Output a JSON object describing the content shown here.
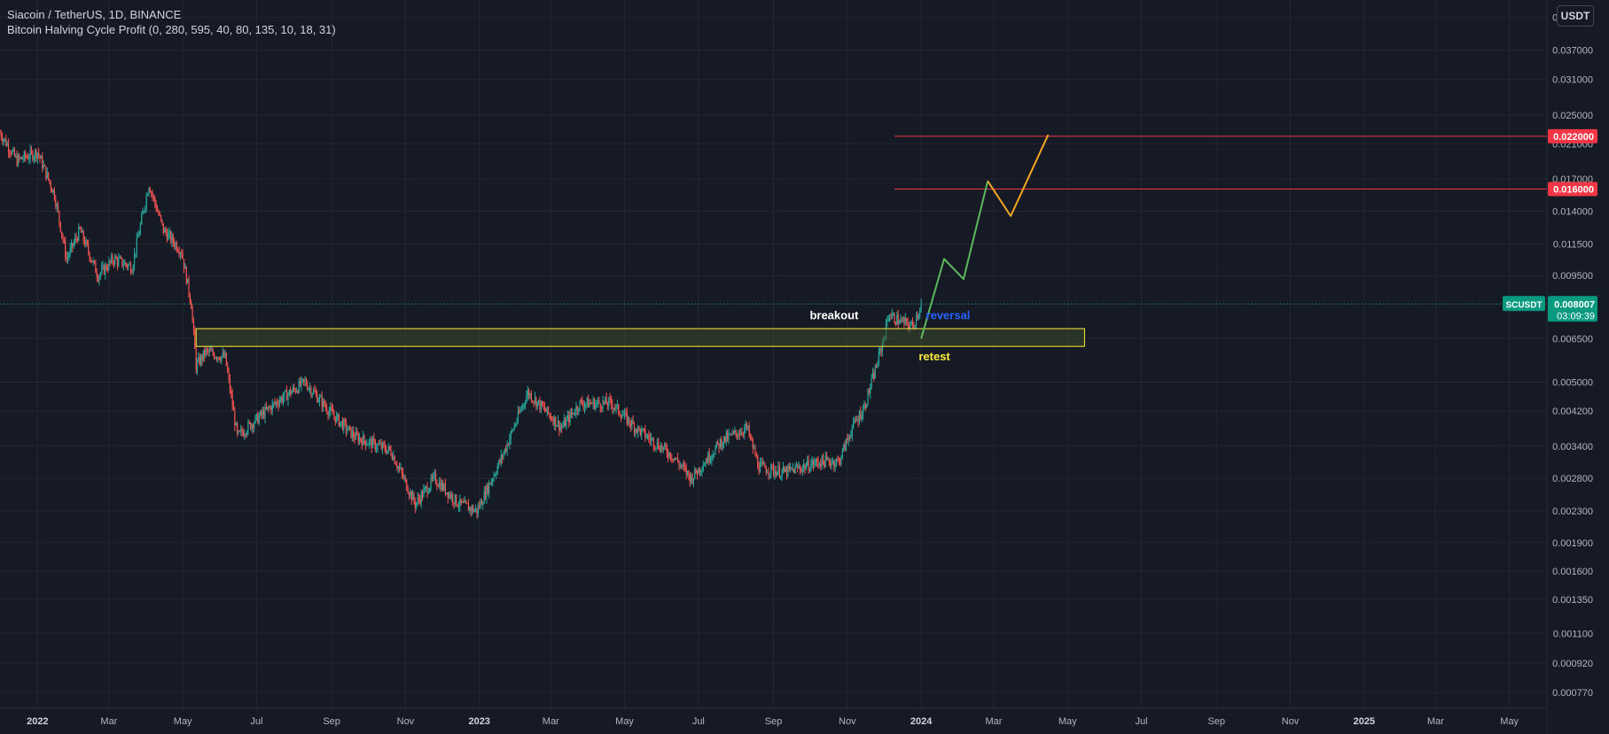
{
  "header": {
    "symbol_title": "Siacoin / TetherUS, 1D, BINANCE",
    "indicator": "Bitcoin Halving Cycle Profit (0, 280, 595, 40, 80, 135, 10, 18, 31)"
  },
  "currency_button": "USDT",
  "colors": {
    "background": "#161a25",
    "grid": "#232733",
    "text": "#b2b5be",
    "up": "#26a69a",
    "down": "#ef5350",
    "zone_border": "#ffeb3b",
    "zone_fill": "#3a4a2a",
    "target_line": "#f23645",
    "path_green": "#5cb85c",
    "path_orange": "#f5a623",
    "reversal_label": "#2962ff",
    "retest_label": "#ffeb3b",
    "current_price_bg": "#089981"
  },
  "chart_data": {
    "type": "candlestick",
    "title": "Siacoin / TetherUS, 1D, BINANCE",
    "scale": "log",
    "ylim": [
      0.0007,
      0.05
    ],
    "xlim": [
      "2021-12-01",
      "2025-06-01"
    ],
    "x_ticks": [
      {
        "label": "2022",
        "date": "2022-01-01",
        "bold": true
      },
      {
        "label": "Mar",
        "date": "2022-03-01"
      },
      {
        "label": "May",
        "date": "2022-05-01"
      },
      {
        "label": "Jul",
        "date": "2022-07-01"
      },
      {
        "label": "Sep",
        "date": "2022-09-01"
      },
      {
        "label": "Nov",
        "date": "2022-11-01"
      },
      {
        "label": "2023",
        "date": "2023-01-01",
        "bold": true
      },
      {
        "label": "Mar",
        "date": "2023-03-01"
      },
      {
        "label": "May",
        "date": "2023-05-01"
      },
      {
        "label": "Jul",
        "date": "2023-07-01"
      },
      {
        "label": "Sep",
        "date": "2023-09-01"
      },
      {
        "label": "Nov",
        "date": "2023-11-01"
      },
      {
        "label": "2024",
        "date": "2024-01-01",
        "bold": true
      },
      {
        "label": "Mar",
        "date": "2024-03-01"
      },
      {
        "label": "May",
        "date": "2024-05-01"
      },
      {
        "label": "Jul",
        "date": "2024-07-01"
      },
      {
        "label": "Sep",
        "date": "2024-09-01"
      },
      {
        "label": "Nov",
        "date": "2024-11-01"
      },
      {
        "label": "2025",
        "date": "2025-01-01",
        "bold": true
      },
      {
        "label": "Mar",
        "date": "2025-03-01"
      },
      {
        "label": "May",
        "date": "2025-05-01"
      }
    ],
    "y_ticks": [
      "0.045000",
      "0.037000",
      "0.031000",
      "0.025000",
      "0.021000",
      "0.017000",
      "0.014000",
      "0.011500",
      "0.009500",
      "0.008000",
      "0.006500",
      "0.005000",
      "0.004200",
      "0.003400",
      "0.002800",
      "0.002300",
      "0.001900",
      "0.001600",
      "0.001350",
      "0.001100",
      "0.000920",
      "0.000770"
    ],
    "price_path": [
      [
        "2021-12-01",
        0.0225
      ],
      [
        "2021-12-15",
        0.019
      ],
      [
        "2022-01-01",
        0.02
      ],
      [
        "2022-01-15",
        0.0155
      ],
      [
        "2022-01-25",
        0.0105
      ],
      [
        "2022-02-05",
        0.0125
      ],
      [
        "2022-02-20",
        0.0095
      ],
      [
        "2022-03-05",
        0.0105
      ],
      [
        "2022-03-20",
        0.01
      ],
      [
        "2022-04-03",
        0.0165
      ],
      [
        "2022-04-15",
        0.0125
      ],
      [
        "2022-04-30",
        0.011
      ],
      [
        "2022-05-08",
        0.008
      ],
      [
        "2022-05-12",
        0.0055
      ],
      [
        "2022-05-20",
        0.006
      ],
      [
        "2022-06-05",
        0.0058
      ],
      [
        "2022-06-15",
        0.0036
      ],
      [
        "2022-07-01",
        0.004
      ],
      [
        "2022-07-20",
        0.0045
      ],
      [
        "2022-08-10",
        0.005
      ],
      [
        "2022-08-30",
        0.0042
      ],
      [
        "2022-09-20",
        0.0036
      ],
      [
        "2022-10-20",
        0.0033
      ],
      [
        "2022-11-09",
        0.0024
      ],
      [
        "2022-11-25",
        0.0028
      ],
      [
        "2022-12-15",
        0.0024
      ],
      [
        "2022-12-30",
        0.0023
      ],
      [
        "2023-01-20",
        0.0032
      ],
      [
        "2023-02-10",
        0.0047
      ],
      [
        "2023-03-10",
        0.0038
      ],
      [
        "2023-03-25",
        0.0044
      ],
      [
        "2023-04-20",
        0.0044
      ],
      [
        "2023-05-10",
        0.0038
      ],
      [
        "2023-06-10",
        0.0032
      ],
      [
        "2023-06-25",
        0.0028
      ],
      [
        "2023-07-20",
        0.0035
      ],
      [
        "2023-08-10",
        0.0038
      ],
      [
        "2023-08-20",
        0.003
      ],
      [
        "2023-09-10",
        0.0029
      ],
      [
        "2023-09-25",
        0.003
      ],
      [
        "2023-10-10",
        0.0031
      ],
      [
        "2023-10-25",
        0.0031
      ],
      [
        "2023-11-05",
        0.0038
      ],
      [
        "2023-11-15",
        0.0043
      ],
      [
        "2023-11-25",
        0.0055
      ],
      [
        "2023-12-01",
        0.0065
      ],
      [
        "2023-12-05",
        0.0075
      ],
      [
        "2023-12-15",
        0.0072
      ],
      [
        "2023-12-25",
        0.007
      ],
      [
        "2024-01-01",
        0.008
      ]
    ],
    "current_price": {
      "label": "SCUSDT",
      "value": "0.008007",
      "countdown": "03:09:39"
    },
    "target_lines": [
      {
        "value": 0.022,
        "label": "0.022000",
        "from": "2023-12-10"
      },
      {
        "value": 0.016,
        "label": "0.016000",
        "from": "2023-12-10"
      }
    ],
    "zone": {
      "from": "2022-05-12",
      "to": "2024-05-15",
      "low": 0.0062,
      "high": 0.0069
    },
    "projection_green": [
      [
        "2024-01-01",
        0.0065
      ],
      [
        "2024-01-20",
        0.0105
      ],
      [
        "2024-02-05",
        0.0093
      ],
      [
        "2024-02-25",
        0.0168
      ]
    ],
    "projection_orange": [
      [
        "2024-02-25",
        0.0168
      ],
      [
        "2024-03-15",
        0.0136
      ],
      [
        "2024-04-15",
        0.0222
      ]
    ],
    "annotations": [
      {
        "text": "breakout",
        "date": "2023-10-01",
        "value": 0.0073,
        "color": "#ffffff"
      },
      {
        "text": "reversal",
        "date": "2024-01-05",
        "value": 0.0073,
        "color": "#2962ff"
      },
      {
        "text": "retest",
        "date": "2023-12-30",
        "value": 0.0057,
        "color": "#ffeb3b"
      }
    ]
  }
}
